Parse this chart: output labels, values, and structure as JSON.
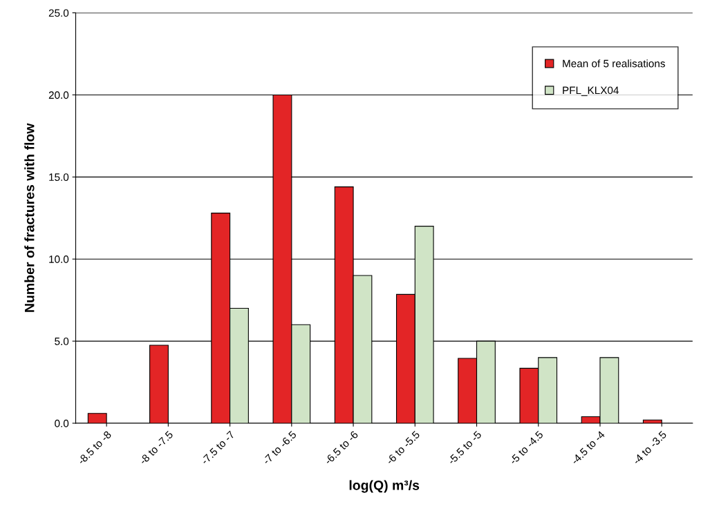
{
  "chart_data": {
    "type": "bar",
    "xlabel": "log(Q) m³/s",
    "ylabel": "Number of fractures with flow",
    "categories": [
      "-8.5 to -8",
      "-8 to -7.5",
      "-7.5 to -7",
      "-7 to -6.5",
      "-6.5 to -6",
      "-6 to -5.5",
      "-5.5 to -5",
      "-5 to -4.5",
      "-4.5 to -4",
      "-4 to -3.5"
    ],
    "series": [
      {
        "name": "Mean of 5 realisations",
        "color": "#e32526",
        "values": [
          0.6,
          4.75,
          12.8,
          20.0,
          14.4,
          7.85,
          3.95,
          3.35,
          0.4,
          0.2
        ]
      },
      {
        "name": "PFL_KLX04",
        "color": "#d0e4c6",
        "values": [
          null,
          null,
          7,
          6,
          9,
          12,
          5,
          4,
          4,
          null
        ]
      }
    ],
    "ylim": [
      0,
      25
    ],
    "yticks": [
      {
        "value": 0,
        "label": "0.0"
      },
      {
        "value": 5,
        "label": "5.0"
      },
      {
        "value": 10,
        "label": "10.0"
      },
      {
        "value": 15,
        "label": "15.0"
      },
      {
        "value": 20,
        "label": "20.0"
      },
      {
        "value": 25,
        "label": "25.0"
      }
    ],
    "grid": "y",
    "legend": "top right"
  }
}
